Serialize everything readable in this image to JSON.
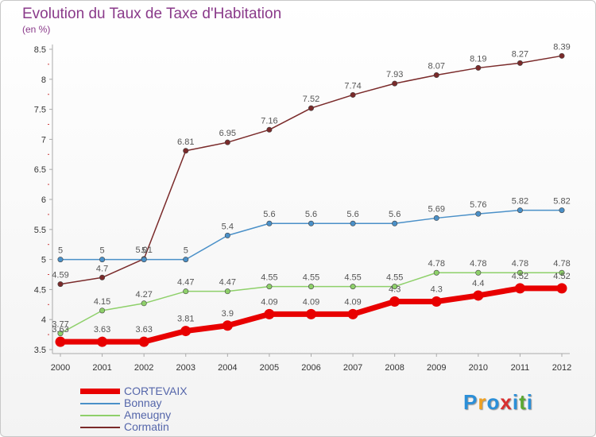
{
  "title": "Evolution du Taux de Taxe d'Habitation",
  "unit": "(en %)",
  "logo": {
    "text": "Proxiti",
    "colors": [
      "#2b8fd8",
      "#f0a020",
      "#2b8fd8",
      "#d83030",
      "#2b8fd8",
      "#5aa832",
      "#2b8fd8"
    ]
  },
  "chart_data": {
    "type": "line",
    "x": [
      "2000",
      "2001",
      "2002",
      "2003",
      "2004",
      "2005",
      "2006",
      "2007",
      "2008",
      "2009",
      "2010",
      "2011",
      "2012"
    ],
    "ylim": [
      3.5,
      8.5
    ],
    "yticks": [
      "3.5",
      "4",
      "4.5",
      "5",
      "5.5",
      "6",
      "6.5",
      "7",
      "7.5",
      "8",
      "8.5"
    ],
    "series": [
      {
        "name": "CORTEVAIX",
        "color": "#e80000",
        "width": 7,
        "values": [
          3.63,
          3.63,
          3.63,
          3.81,
          3.9,
          4.09,
          4.09,
          4.09,
          4.3,
          4.3,
          4.4,
          4.52,
          4.52
        ],
        "labels": [
          "3.63",
          "3.63",
          "3.63",
          "3.81",
          "3.9",
          "4.09",
          "4.09",
          "4.09",
          "4.3",
          "4.3",
          "4.4",
          "4.52",
          "4.52"
        ]
      },
      {
        "name": "Bonnay",
        "color": "#4a90c8",
        "width": 1.5,
        "values": [
          5,
          5,
          5,
          5,
          5.4,
          5.6,
          5.6,
          5.6,
          5.6,
          5.69,
          5.76,
          5.82,
          5.82
        ],
        "labels": [
          "5",
          "5",
          "5",
          "5",
          "5.4",
          "5.6",
          "5.6",
          "5.6",
          "5.6",
          "5.69",
          "5.76",
          "5.82",
          "5.82"
        ]
      },
      {
        "name": "Ameugny",
        "color": "#8ed06a",
        "width": 1.5,
        "values": [
          3.77,
          4.15,
          4.27,
          4.47,
          4.47,
          4.55,
          4.55,
          4.55,
          4.55,
          4.78,
          4.78,
          4.78,
          4.78
        ],
        "labels": [
          "3.77",
          "4.15",
          "4.27",
          "4.47",
          "4.47",
          "4.55",
          "4.55",
          "4.55",
          "4.55",
          "4.78",
          "4.78",
          "4.78",
          "4.78"
        ]
      },
      {
        "name": "Cormatin",
        "color": "#7a2a2a",
        "width": 1.5,
        "values": [
          4.59,
          4.7,
          5.01,
          6.81,
          6.95,
          7.16,
          7.52,
          7.74,
          7.93,
          8.07,
          8.19,
          8.27,
          8.39
        ],
        "labels": [
          "4.59",
          "4.7",
          "5.01",
          "6.81",
          "6.95",
          "7.16",
          "7.52",
          "7.74",
          "7.93",
          "8.07",
          "8.19",
          "8.27",
          "8.39"
        ]
      }
    ]
  }
}
